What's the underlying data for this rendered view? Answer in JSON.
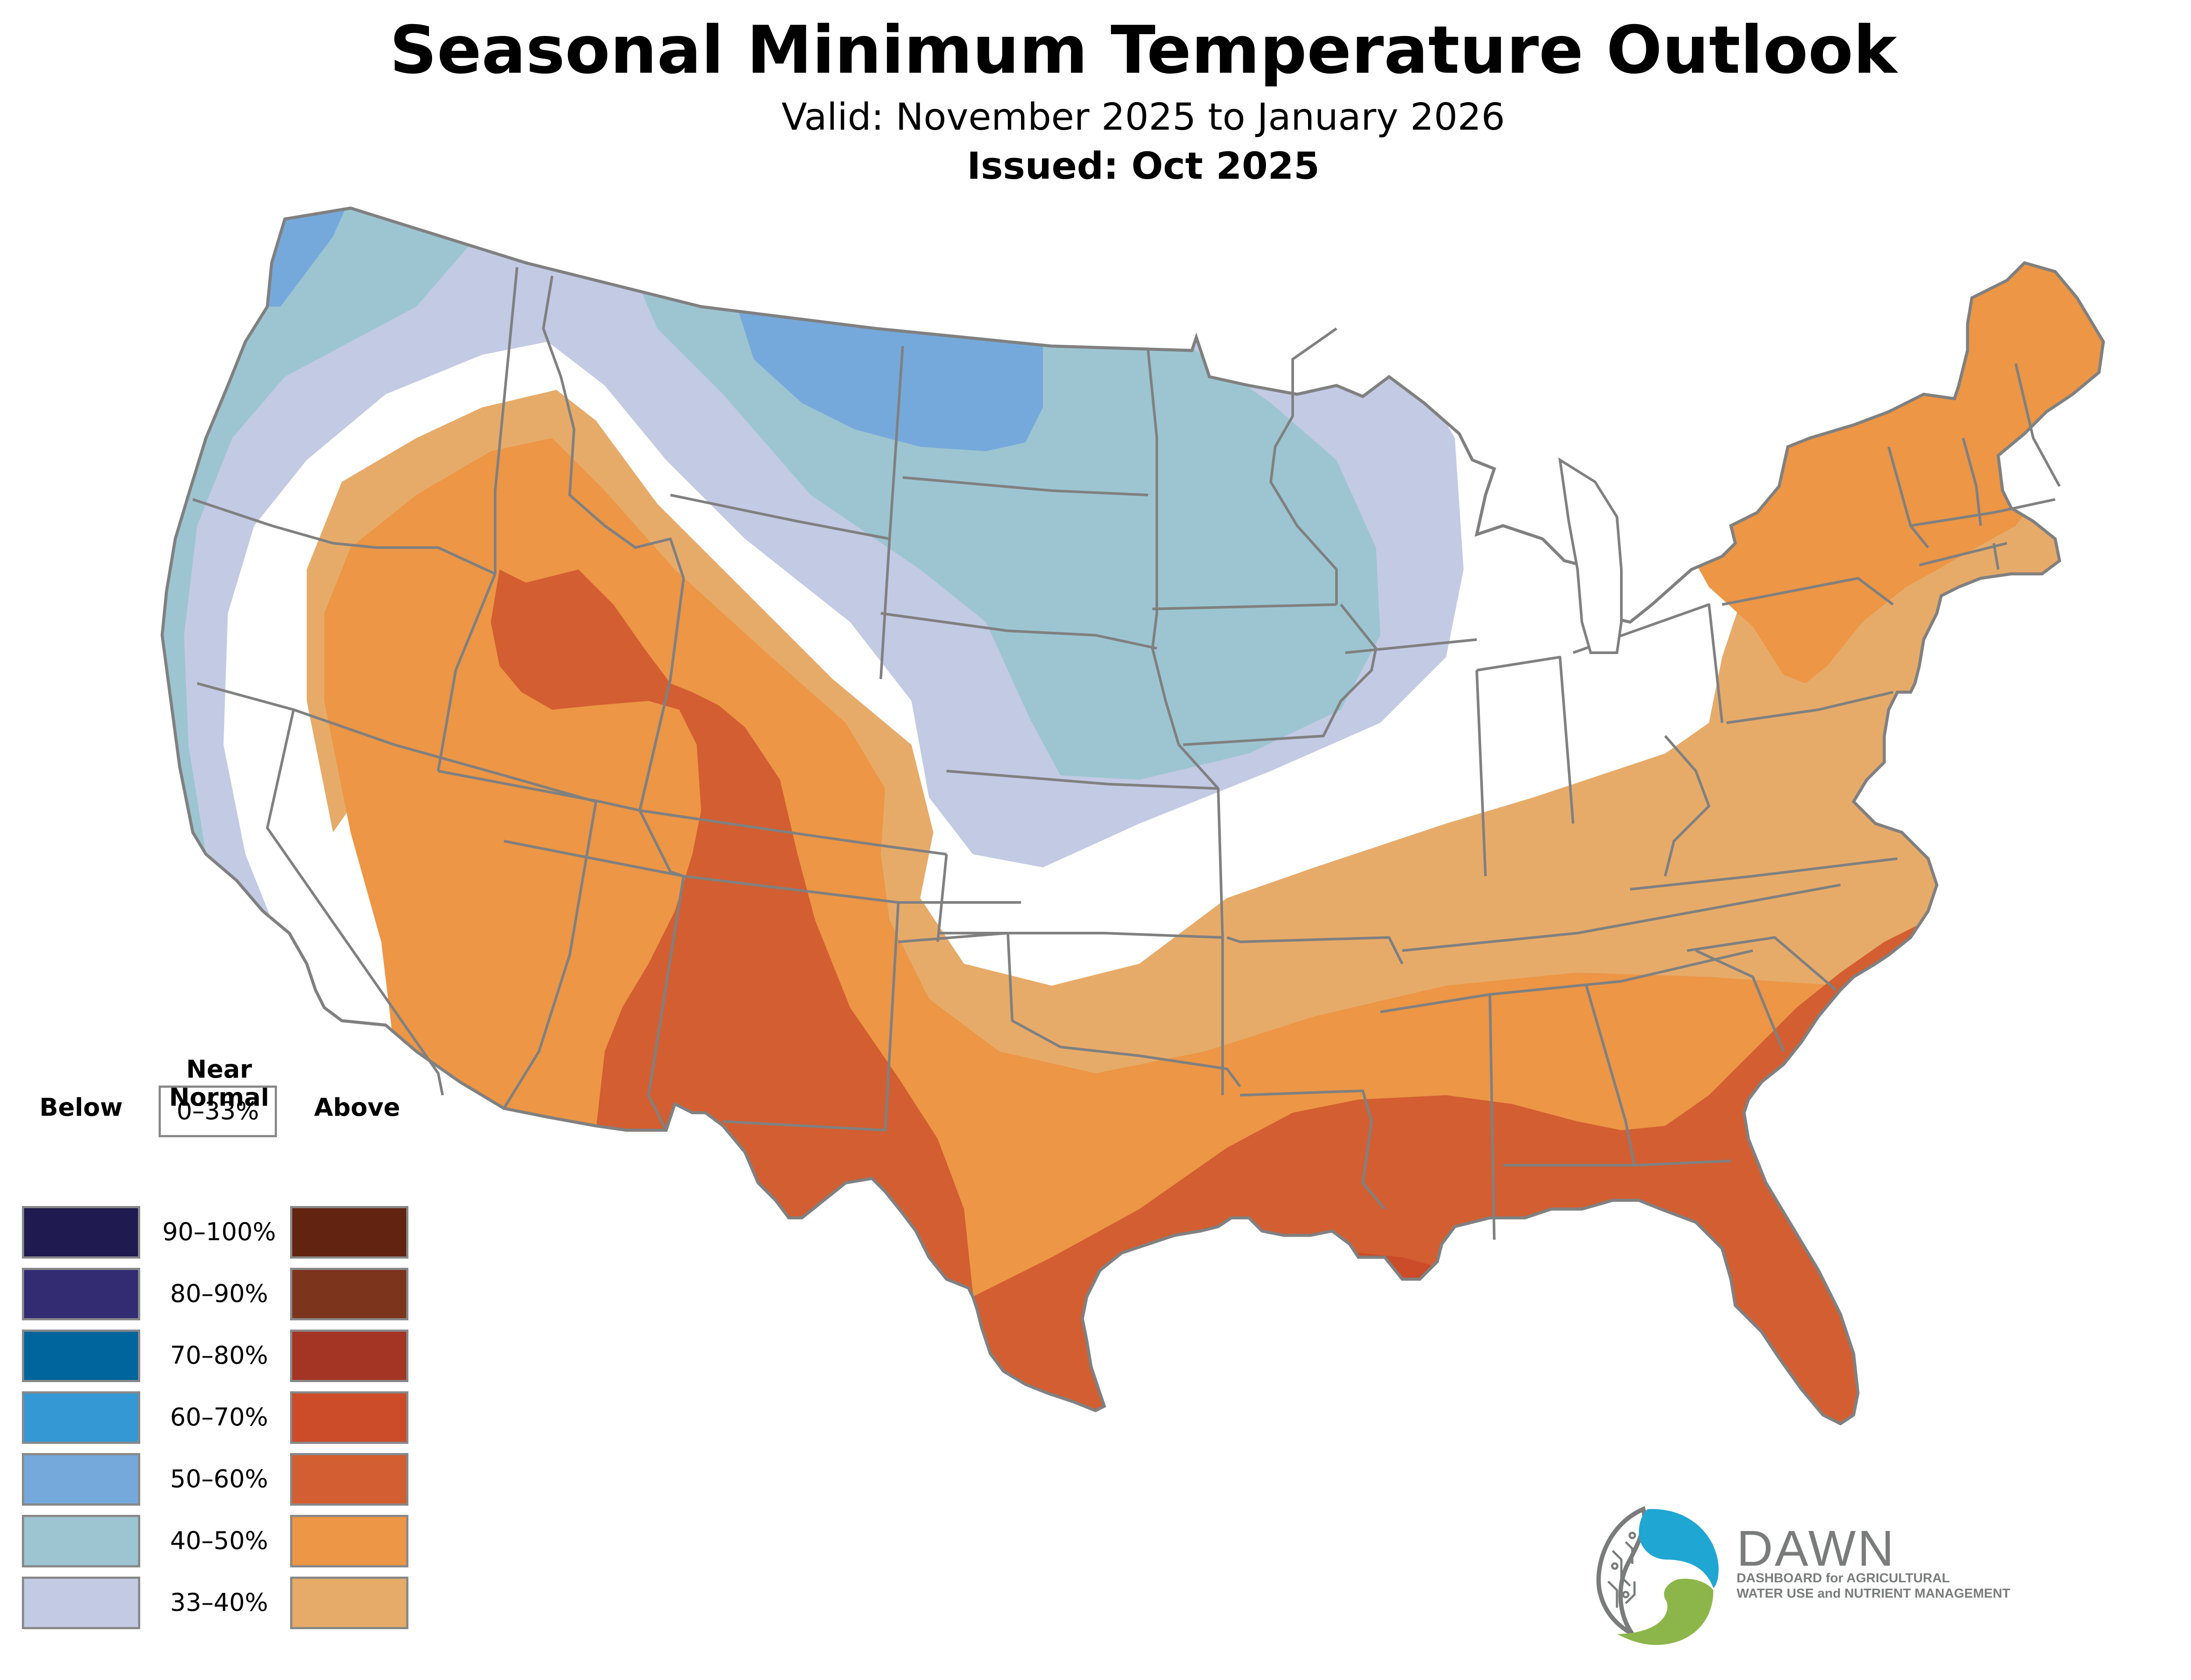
{
  "header": {
    "title": "Seasonal Minimum Temperature Outlook",
    "valid": "Valid: November 2025 to January 2026",
    "issued": "Issued: Oct 2025"
  },
  "legend": {
    "near_normal_label": "Near Normal",
    "near_normal_range": "0–33%",
    "near_normal_color": "#ffffff",
    "below_label": "Below",
    "above_label": "Above",
    "rows": [
      {
        "range": "90–100%",
        "below_color": "#1f1a4f",
        "above_color": "#632311"
      },
      {
        "range": "80–90%",
        "below_color": "#332c72",
        "above_color": "#7d341c"
      },
      {
        "range": "70–80%",
        "below_color": "#00659c",
        "above_color": "#a43524"
      },
      {
        "range": "60–70%",
        "below_color": "#3498d4",
        "above_color": "#cc4b28"
      },
      {
        "range": "50–60%",
        "below_color": "#76a9db",
        "above_color": "#d35e31"
      },
      {
        "range": "40–50%",
        "below_color": "#9cc5d1",
        "above_color": "#ec9646"
      },
      {
        "range": "33–40%",
        "below_color": "#c3cae4",
        "above_color": "#e7ab69"
      }
    ]
  },
  "map": {
    "boundary_color": "#808080",
    "regions": [
      {
        "area": "Pacific Northwest coast",
        "category": "Below",
        "range": "40–50%"
      },
      {
        "area": "Northern Washington coast",
        "category": "Below",
        "range": "50–60%"
      },
      {
        "area": "Northern Montana / North Dakota border",
        "category": "Below",
        "range": "50–60%"
      },
      {
        "area": "Northern Plains and Upper Midwest",
        "category": "Below",
        "range": "40–50%"
      },
      {
        "area": "Great Basin and Rockies",
        "category": "Above",
        "range": "40–50%"
      },
      {
        "area": "Four Corners / New Mexico / West Texas",
        "category": "Above",
        "range": "50–60%"
      },
      {
        "area": "Gulf Coast and Southeast",
        "category": "Above",
        "range": "50–60%"
      },
      {
        "area": "Southeast Louisiana",
        "category": "Above",
        "range": "60–70%"
      },
      {
        "area": "Northeast",
        "category": "Above",
        "range": "40–50%"
      }
    ]
  },
  "logo": {
    "name": "DAWN",
    "line1": "DASHBOARD for AGRICULTURAL",
    "line2": "WATER USE and NUTRIENT MANAGEMENT",
    "colors": {
      "blue": "#1fa6d2",
      "green": "#8db64a",
      "gray": "#7a7c7c"
    }
  }
}
